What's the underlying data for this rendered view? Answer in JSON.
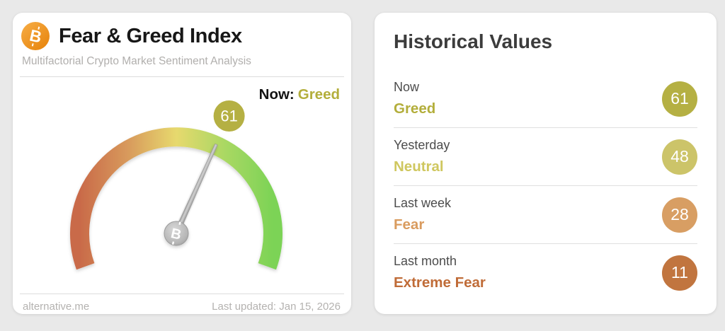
{
  "gauge_card": {
    "title": "Fear & Greed Index",
    "subtitle": "Multifactorial Crypto Market Sentiment Analysis",
    "now_label": "Now:",
    "now_value": "Greed",
    "now_value_color": "#b3ae3b",
    "source": "alternative.me",
    "last_updated": "Last updated: Jan 15, 2026",
    "bitcoin_orange": "#ef9421"
  },
  "history": {
    "title": "Historical Values",
    "rows": [
      {
        "label": "Now",
        "classification": "Greed",
        "value": 61,
        "color": "#b3ae3b",
        "badge_color": "#b5b043"
      },
      {
        "label": "Yesterday",
        "classification": "Neutral",
        "value": 48,
        "color": "#cfc75f",
        "badge_color": "#ccc469"
      },
      {
        "label": "Last week",
        "classification": "Fear",
        "value": 28,
        "color": "#d99b5e",
        "badge_color": "#d89e63"
      },
      {
        "label": "Last month",
        "classification": "Extreme Fear",
        "value": 11,
        "color": "#c06c38",
        "badge_color": "#c1753f"
      }
    ]
  },
  "chart_data": {
    "type": "gauge",
    "title": "Fear & Greed Index",
    "subtitle": "Multifactorial Crypto Market Sentiment Analysis",
    "value": 61,
    "classification": "Greed",
    "range": [
      0,
      100
    ],
    "arc_degrees": 220,
    "badge_color": "#b5b043",
    "color_stops": [
      "#c96a49",
      "#d89a5c",
      "#e7d96e",
      "#aad863",
      "#7cd356"
    ],
    "historical": [
      {
        "label": "Now",
        "value": 61,
        "classification": "Greed"
      },
      {
        "label": "Yesterday",
        "value": 48,
        "classification": "Neutral"
      },
      {
        "label": "Last week",
        "value": 28,
        "classification": "Fear"
      },
      {
        "label": "Last month",
        "value": 11,
        "classification": "Extreme Fear"
      }
    ]
  }
}
